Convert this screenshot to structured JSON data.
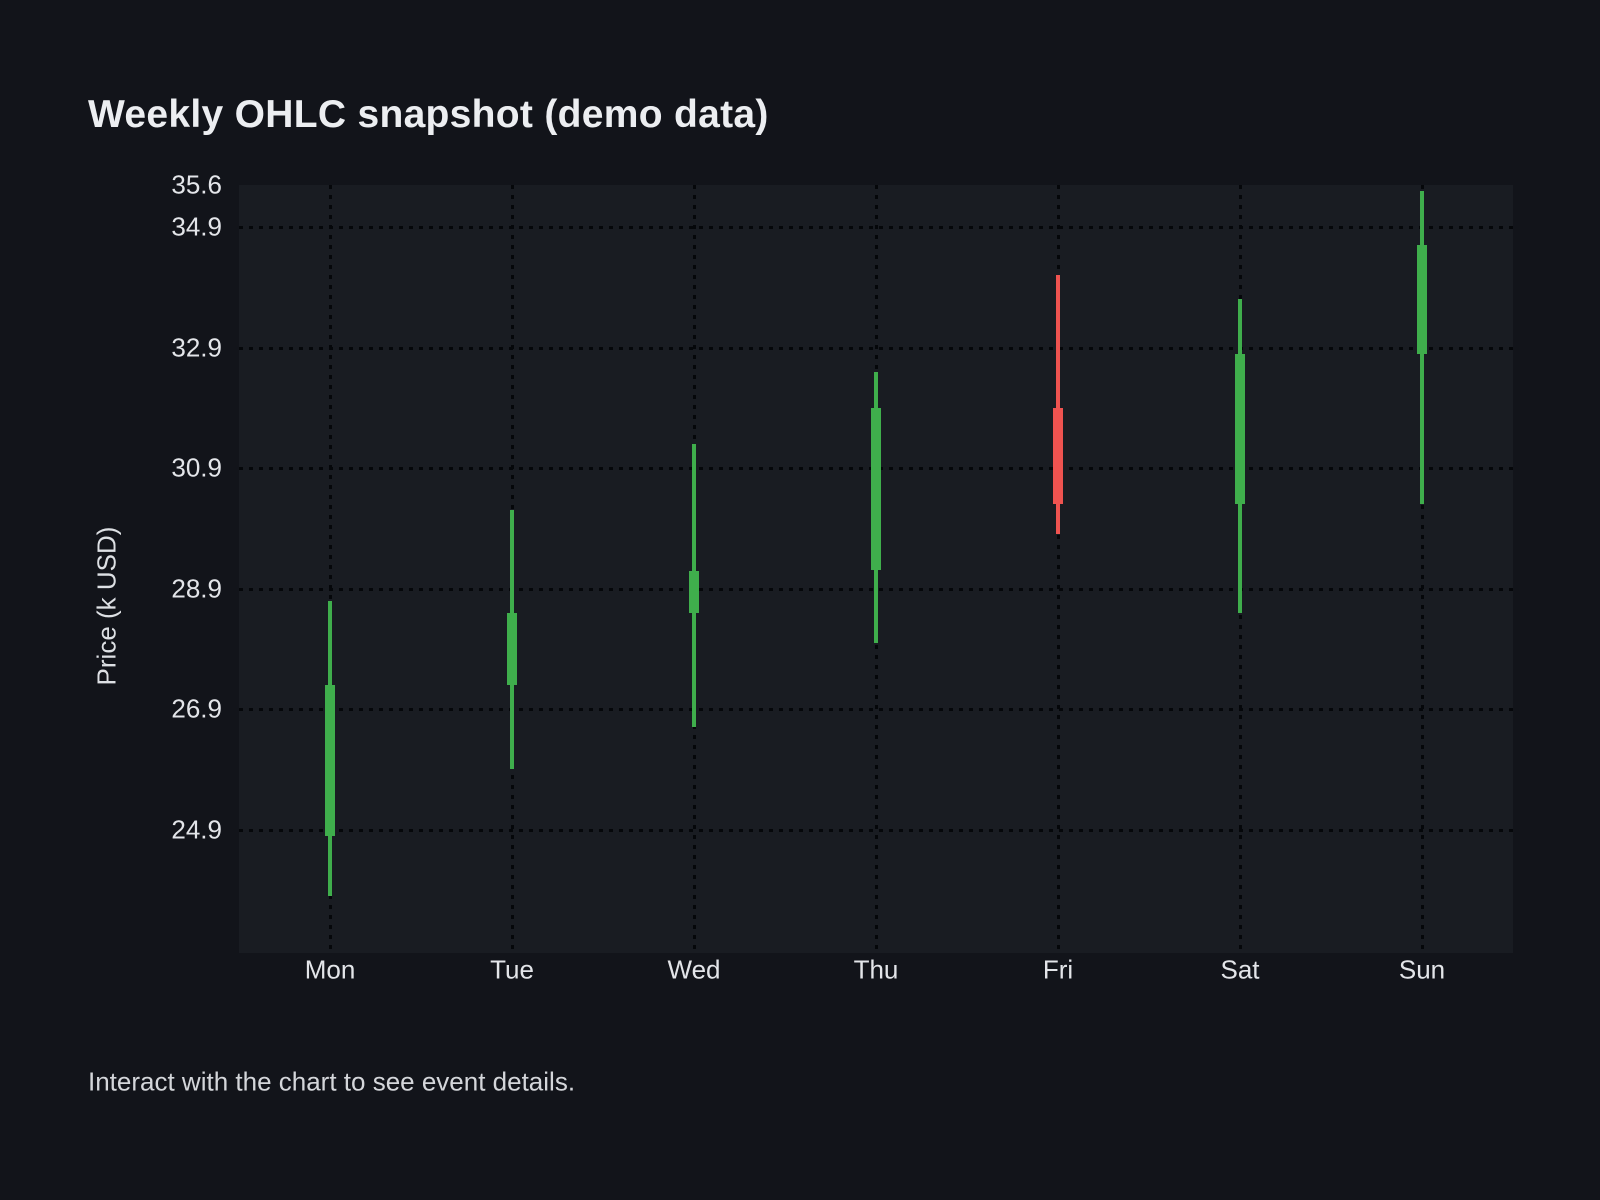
{
  "page": {
    "background": "#12141a",
    "footer_hint": "Interact with the chart to see event details."
  },
  "chart_data": {
    "type": "candlestick",
    "title": "Weekly OHLC snapshot (demo data)",
    "ylabel": "Price (k USD)",
    "xlabel": "",
    "categories": [
      "Mon",
      "Tue",
      "Wed",
      "Thu",
      "Fri",
      "Sat",
      "Sun"
    ],
    "series": [
      {
        "name": "OHLC",
        "format": [
          "open",
          "high",
          "low",
          "close"
        ],
        "values": [
          [
            24.8,
            28.7,
            23.8,
            27.3
          ],
          [
            27.3,
            30.2,
            25.9,
            28.5
          ],
          [
            28.5,
            31.3,
            26.6,
            29.2
          ],
          [
            29.2,
            32.5,
            28.0,
            31.9
          ],
          [
            31.9,
            34.1,
            29.8,
            30.3
          ],
          [
            30.3,
            33.7,
            28.5,
            32.8
          ],
          [
            32.8,
            35.5,
            30.3,
            34.6
          ]
        ]
      }
    ],
    "y_ticks": [
      35.6,
      34.9,
      32.9,
      30.9,
      28.9,
      26.9,
      24.9
    ],
    "ylim": [
      22.85,
      35.6
    ],
    "grid": "dotted",
    "legend": "none",
    "colors": {
      "up": "#3fae4c",
      "down": "#ef5350",
      "plot_bg": "#191c22",
      "page_bg": "#12141a",
      "grid": "#05070a",
      "text": "#e3e5e9"
    }
  }
}
